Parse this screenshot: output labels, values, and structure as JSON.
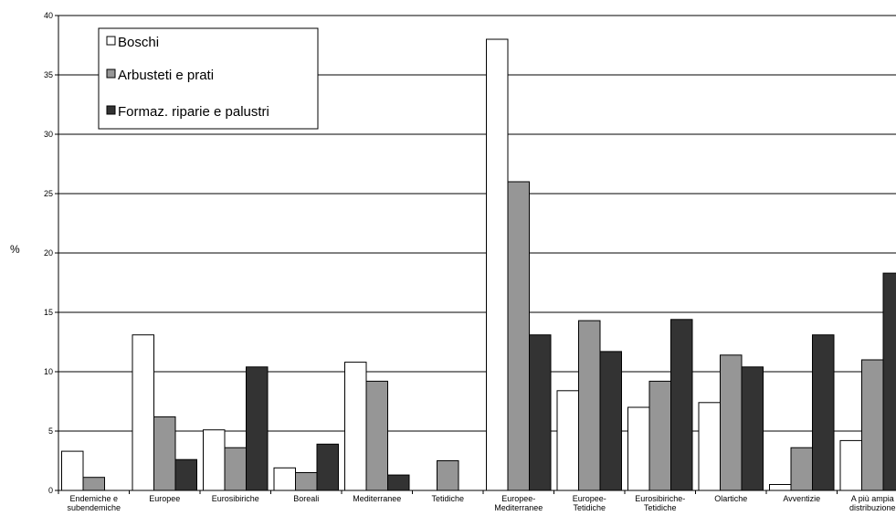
{
  "chart_data": {
    "type": "bar",
    "title": "",
    "xlabel": "",
    "ylabel": "%",
    "ylim": [
      0,
      40
    ],
    "yticks": [
      0,
      5,
      10,
      15,
      20,
      25,
      30,
      35,
      40
    ],
    "grid": true,
    "legend_position": "top-left",
    "categories": [
      [
        "Endemiche e",
        "subendemiche"
      ],
      [
        "Europee"
      ],
      [
        "Eurosibiriche"
      ],
      [
        "Boreali"
      ],
      [
        "Mediterranee"
      ],
      [
        "Tetidiche"
      ],
      [
        "Europee-",
        "Mediterranee"
      ],
      [
        "Europee-",
        "Tetidiche"
      ],
      [
        "Eurosibiriche-",
        "Tetidiche"
      ],
      [
        "Olartiche"
      ],
      [
        "Avventizie"
      ],
      [
        "A più ampia",
        "distribuzione"
      ]
    ],
    "series": [
      {
        "name": "Boschi",
        "color": "#ffffff",
        "values": [
          3.3,
          13.1,
          5.1,
          1.9,
          10.8,
          0,
          38.0,
          8.4,
          7.0,
          7.4,
          0.5,
          4.2
        ]
      },
      {
        "name": "Arbusteti e prati",
        "color": "#969696",
        "values": [
          1.1,
          6.2,
          3.6,
          1.5,
          9.2,
          2.5,
          26.0,
          14.3,
          9.2,
          11.4,
          3.6,
          11.0
        ]
      },
      {
        "name": "Formaz. riparie e palustri",
        "color": "#333333",
        "values": [
          0,
          2.6,
          10.4,
          3.9,
          1.3,
          0,
          13.1,
          11.7,
          14.4,
          10.4,
          13.1,
          18.3
        ]
      }
    ]
  }
}
